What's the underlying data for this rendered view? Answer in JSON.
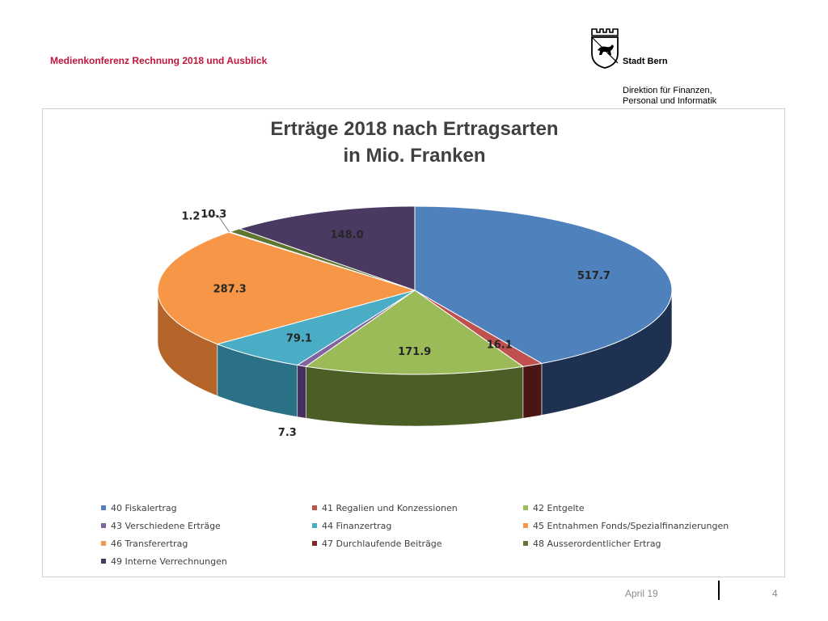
{
  "header": {
    "title": "Medienkonferenz Rechnung 2018 und Ausblick",
    "city": "Stadt Bern",
    "department_line1": "Direktion für Finanzen,",
    "department_line2": "Personal und Informatik",
    "logo_icon": "bern-coat-of-arms-icon"
  },
  "footer": {
    "date": "April 19",
    "page": "4"
  },
  "colors": {
    "title_red": "#c0163a"
  },
  "chart_data": {
    "type": "pie",
    "style": "3d",
    "title_line1": "Erträge 2018 nach Ertragsarten",
    "title_line2": "in Mio. Franken",
    "legend_placement": "bottom",
    "slices": [
      {
        "name": "40 Fiskalertrag",
        "value": 517.7,
        "label": "517.7",
        "color": "#4f81bd",
        "side": "#1e3150"
      },
      {
        "name": "41 Regalien und Konzessionen",
        "value": 16.1,
        "label": "16.1",
        "color": "#c0504d",
        "side": "#4a1514"
      },
      {
        "name": "42 Entgelte",
        "value": 171.9,
        "label": "171.9",
        "color": "#9bbb59",
        "side": "#4a5e26"
      },
      {
        "name": "43 Verschiedene Erträge",
        "value": 7.3,
        "label": "7.3",
        "color": "#8064a2",
        "side": "#45305e"
      },
      {
        "name": "44 Finanzertrag",
        "value": 79.1,
        "label": "79.1",
        "color": "#4bacc6",
        "side": "#2a7087"
      },
      {
        "name": "45 Entnahmen Fonds/Spezialfinanzierungen",
        "value": 0,
        "label": "",
        "color": "#f79646",
        "side": "#b5652a"
      },
      {
        "name": "46 Transferertrag",
        "value": 287.3,
        "label": "287.3",
        "color": "#f79646",
        "side": "#b5652a"
      },
      {
        "name": "47 Durchlaufende Beiträge",
        "value": 1.2,
        "label": "1.2",
        "color": "#772c2a",
        "side": "#3a1211"
      },
      {
        "name": "48 Ausserordentlicher Ertrag",
        "value": 10.3,
        "label": "10.3",
        "color": "#5f7530",
        "side": "#2f3a17"
      },
      {
        "name": "49 Interne Verrechnungen",
        "value": 148.0,
        "label": "148.0",
        "color": "#4a3a62",
        "side": "#251d31"
      }
    ]
  }
}
